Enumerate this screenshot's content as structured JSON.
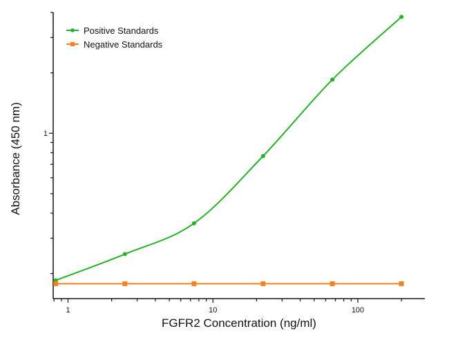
{
  "chart_data": {
    "type": "line",
    "title": "",
    "xlabel": "FGFR2 Concentration (ng/ml)",
    "ylabel": "Absorbance (450 nm)",
    "xscale": "log",
    "yscale": "log",
    "xlim": [
      0.79,
      290
    ],
    "ylim": [
      0.15,
      4
    ],
    "x_ticks": [
      1,
      10,
      100
    ],
    "x_tick_labels": [
      "1",
      "10",
      "100"
    ],
    "y_ticks": [
      1
    ],
    "y_tick_labels": [
      "1"
    ],
    "grid": false,
    "legend_position": "top-left",
    "series": [
      {
        "name": "Positive Standards",
        "color": "#22b422",
        "marker": "circle",
        "fit_curve": true,
        "x": [
          0.823,
          2.47,
          7.41,
          22.2,
          66.7,
          200
        ],
        "y": [
          0.185,
          0.25,
          0.356,
          0.77,
          1.85,
          3.8
        ]
      },
      {
        "name": "Negative Standards",
        "color": "#f5821f",
        "marker": "square",
        "fit_curve": false,
        "x": [
          0.823,
          2.47,
          7.41,
          22.2,
          66.7,
          200
        ],
        "y": [
          0.178,
          0.178,
          0.178,
          0.178,
          0.178,
          0.178
        ]
      }
    ]
  }
}
